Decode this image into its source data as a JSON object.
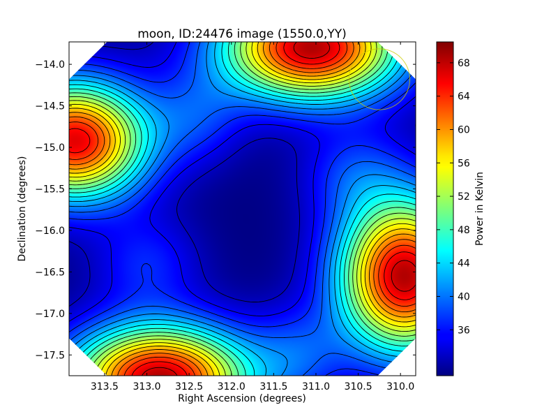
{
  "chart_data": {
    "type": "heatmap",
    "title": "moon, ID:24476 image (1550.0,YY)",
    "xlabel": "Right Ascension (degrees)",
    "ylabel": "Declination (degrees)",
    "colorbar_label": "Power in Kelvin",
    "colormap": "jet",
    "x_axis_inverted": true,
    "xlim": [
      313.92,
      309.82
    ],
    "ylim": [
      -17.75,
      -13.73
    ],
    "x_ticks": [
      313.5,
      313.0,
      312.5,
      312.0,
      311.5,
      311.0,
      310.5,
      310.0
    ],
    "x_tick_labels": [
      "313.5",
      "313.0",
      "312.5",
      "312.0",
      "311.5",
      "311.0",
      "310.5",
      "310.0"
    ],
    "y_ticks": [
      -14.0,
      -14.5,
      -15.0,
      -15.5,
      -16.0,
      -16.5,
      -17.0,
      -17.5
    ],
    "y_tick_labels": [
      "−14.0",
      "−14.5",
      "−15.0",
      "−15.5",
      "−16.0",
      "−16.5",
      "−17.0",
      "−17.5"
    ],
    "colorbar_range": [
      30.5,
      70.5
    ],
    "colorbar_ticks": [
      36,
      40,
      44,
      48,
      52,
      56,
      60,
      64,
      68
    ],
    "colorbar_tick_labels": [
      "36",
      "40",
      "44",
      "48",
      "52",
      "56",
      "60",
      "64",
      "68"
    ],
    "contour_levels": [
      33,
      35,
      37,
      39,
      41,
      43,
      45,
      47,
      49,
      51,
      53,
      55,
      57,
      59,
      61,
      63,
      65,
      67,
      69
    ],
    "baseline_kelvin": 30.5,
    "blobs": [
      {
        "ra": 313.85,
        "dec": -14.92,
        "amp": 36,
        "sx": 0.6,
        "sy": 0.5
      },
      {
        "ra": 312.85,
        "dec": -17.78,
        "amp": 38,
        "sx": 0.75,
        "sy": 0.45
      },
      {
        "ra": 311.05,
        "dec": -13.8,
        "amp": 38,
        "sx": 0.75,
        "sy": 0.45
      },
      {
        "ra": 309.95,
        "dec": -16.55,
        "amp": 38,
        "sx": 0.55,
        "sy": 0.65
      },
      {
        "ra": 312.4,
        "dec": -14.65,
        "amp": 6,
        "sx": 0.4,
        "sy": 0.4
      },
      {
        "ra": 310.55,
        "dec": -15.3,
        "amp": 6,
        "sx": 0.45,
        "sy": 0.4
      },
      {
        "ra": 313.0,
        "dec": -16.4,
        "amp": 6,
        "sx": 0.45,
        "sy": 0.4
      },
      {
        "ra": 311.2,
        "dec": -17.5,
        "amp": 6,
        "sx": 0.4,
        "sy": 0.4
      }
    ],
    "marker_circle": {
      "ra": 310.25,
      "dec": -14.18,
      "radius_deg": 0.36,
      "color": "#cccc00"
    },
    "corner_cut_deg": 0.45
  }
}
